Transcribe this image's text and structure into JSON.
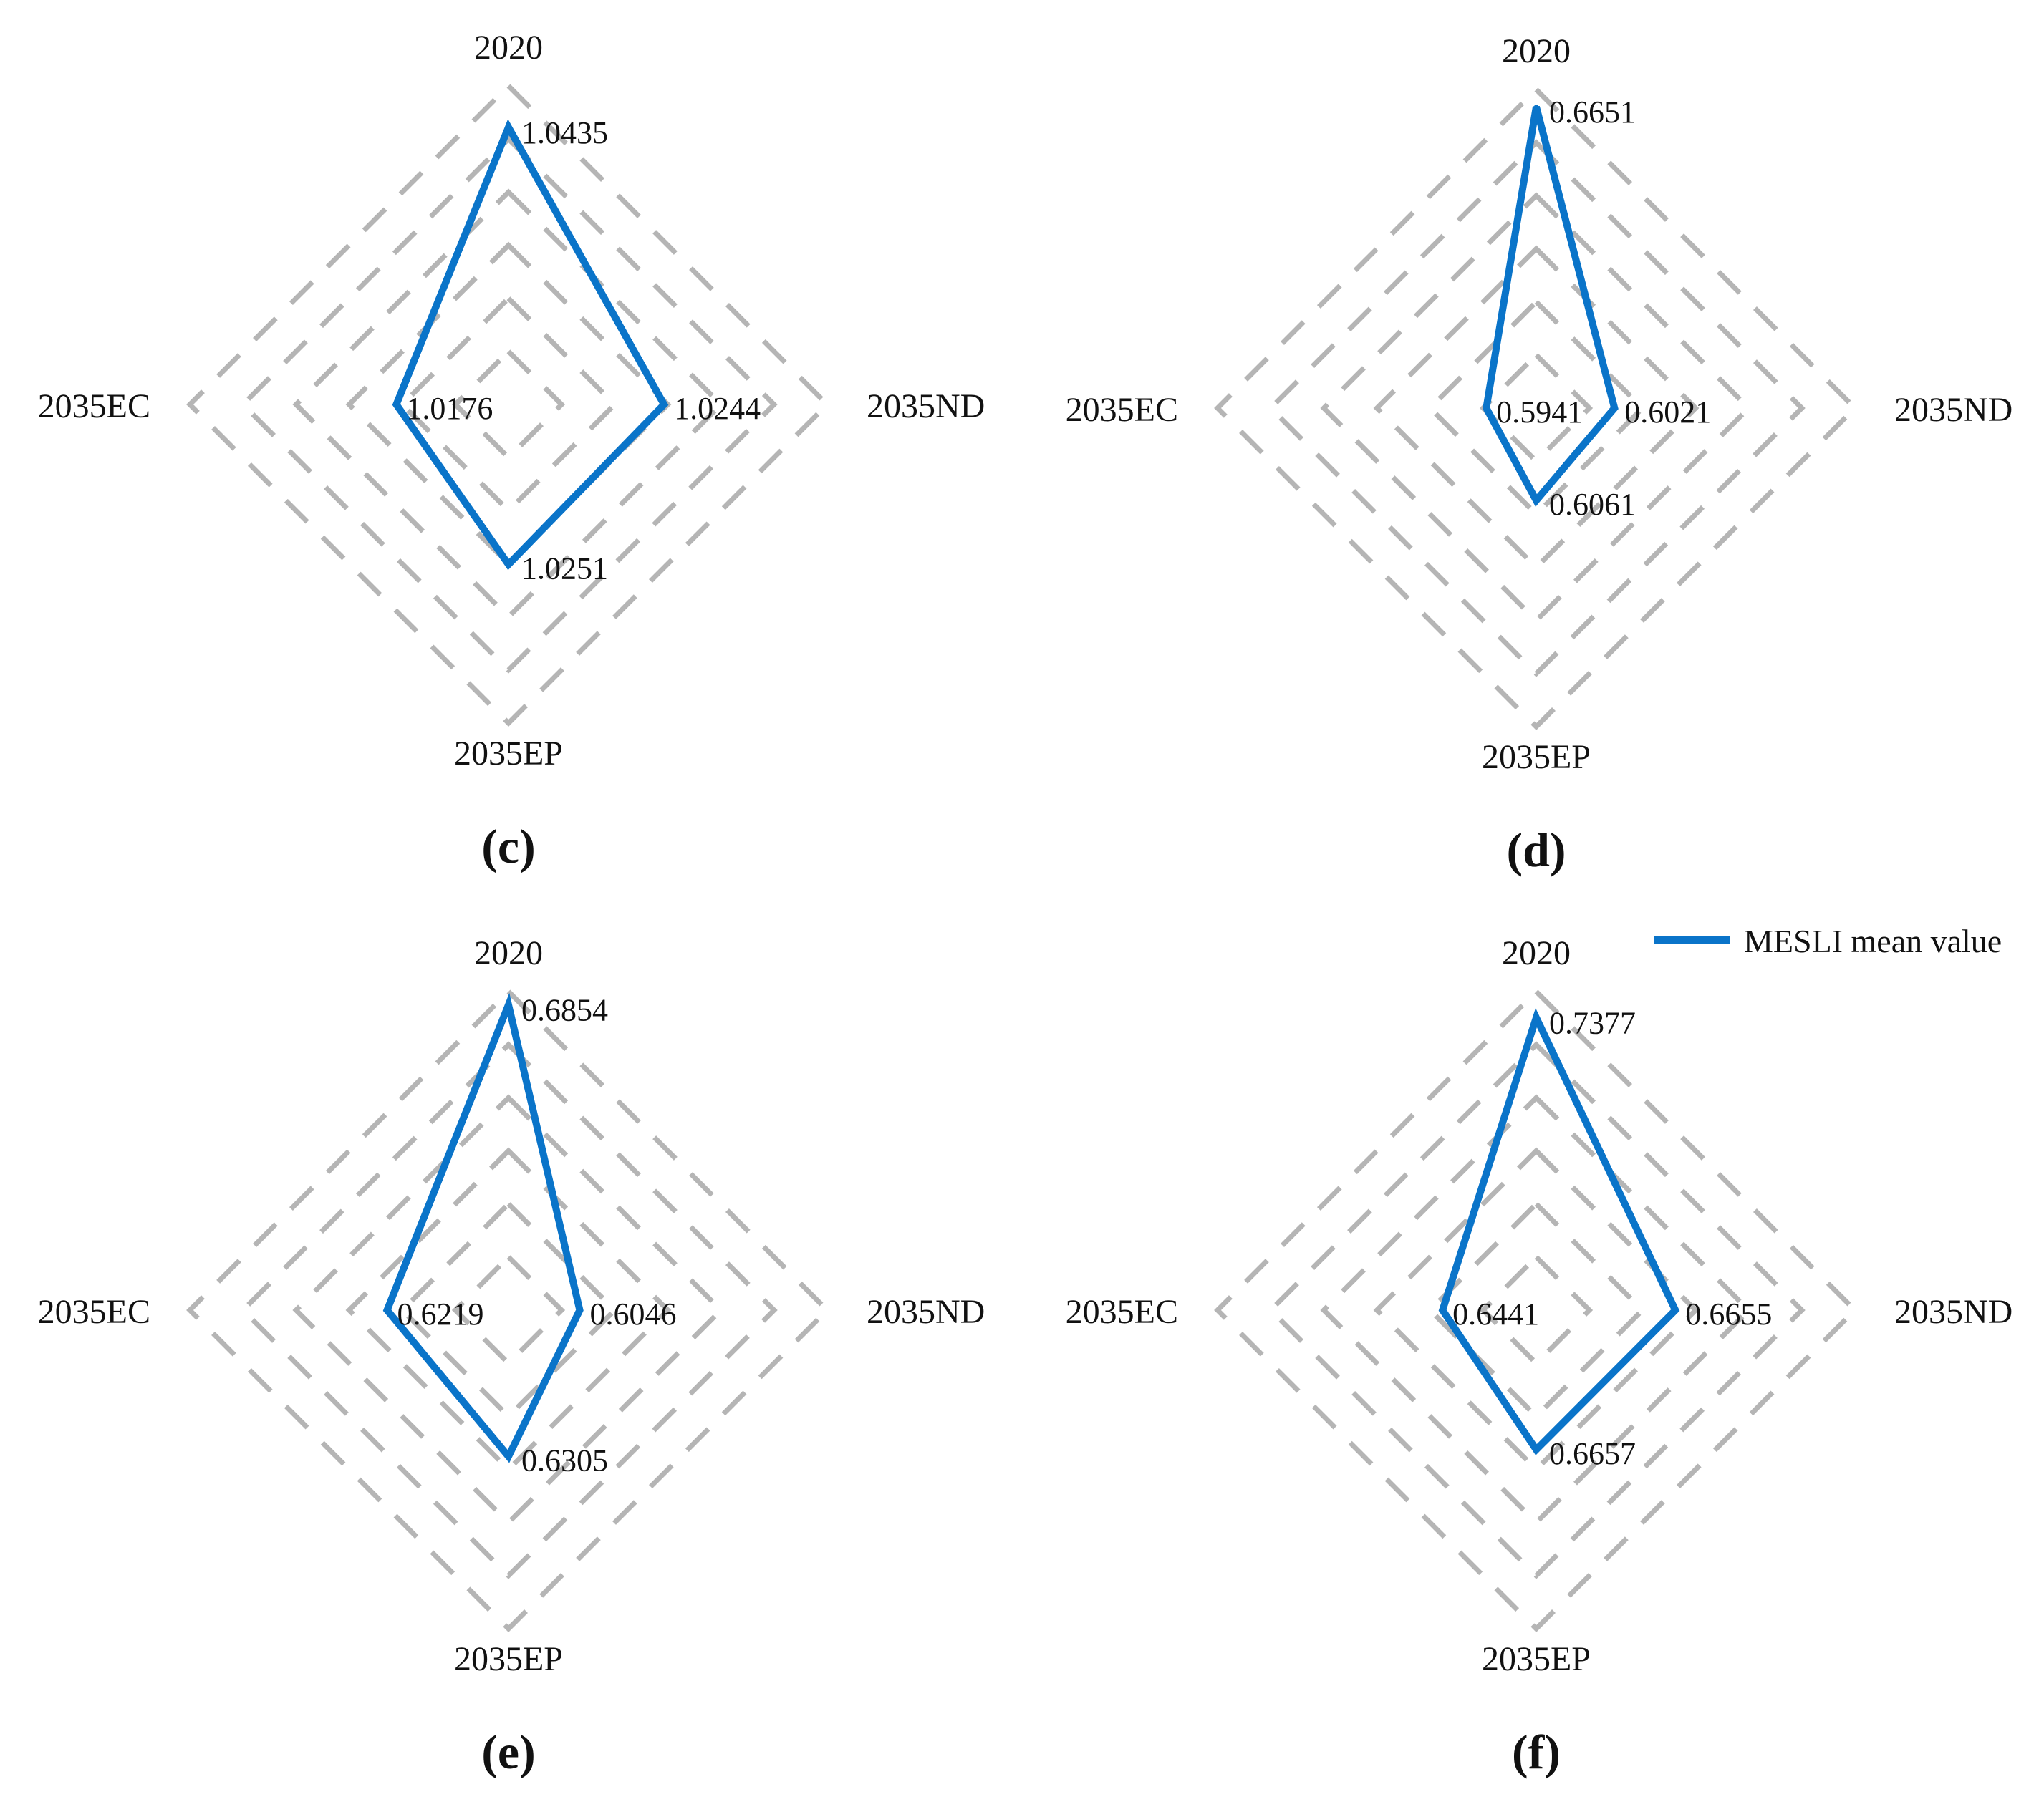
{
  "legend": {
    "label": "MESLI mean value",
    "color": "#0A74C9"
  },
  "chart_data": [
    {
      "type": "radar",
      "panel": "(c)",
      "axes": [
        "2020",
        "2035ND",
        "2035EP",
        "2035EC"
      ],
      "series": [
        {
          "name": "MESLI mean value",
          "values": [
            1.0435,
            1.0244,
            1.0251,
            1.0176
          ],
          "labels": [
            "1.0435",
            "1.0244",
            "1.0251",
            "1.0176"
          ]
        }
      ],
      "rlim": [
        1.0,
        1.05
      ]
    },
    {
      "type": "radar",
      "panel": "(d)",
      "axes": [
        "2020",
        "2035ND",
        "2035EP",
        "2035EC"
      ],
      "series": [
        {
          "name": "MESLI mean value",
          "values": [
            0.6651,
            0.6021,
            0.6061,
            0.5941
          ],
          "labels": [
            "0.6651",
            "0.6021",
            "0.6061",
            "0.5941"
          ]
        }
      ],
      "rlim": [
        0.58,
        0.67
      ]
    },
    {
      "type": "radar",
      "panel": "(e)",
      "axes": [
        "2020",
        "2035ND",
        "2035EP",
        "2035EC"
      ],
      "series": [
        {
          "name": "MESLI mean value",
          "values": [
            0.6854,
            0.6046,
            0.6305,
            0.6219
          ],
          "labels": [
            "0.6854",
            "0.6046",
            "0.6305",
            "0.6219"
          ]
        }
      ],
      "rlim": [
        0.58,
        0.69
      ]
    },
    {
      "type": "radar",
      "panel": "(f)",
      "axes": [
        "2020",
        "2035ND",
        "2035EP",
        "2035EC"
      ],
      "series": [
        {
          "name": "MESLI mean value",
          "values": [
            0.7377,
            0.6655,
            0.6657,
            0.6441
          ],
          "labels": [
            "0.7377",
            "0.6655",
            "0.6657",
            "0.6441"
          ]
        }
      ],
      "rlim": [
        0.6,
        0.75
      ]
    }
  ]
}
